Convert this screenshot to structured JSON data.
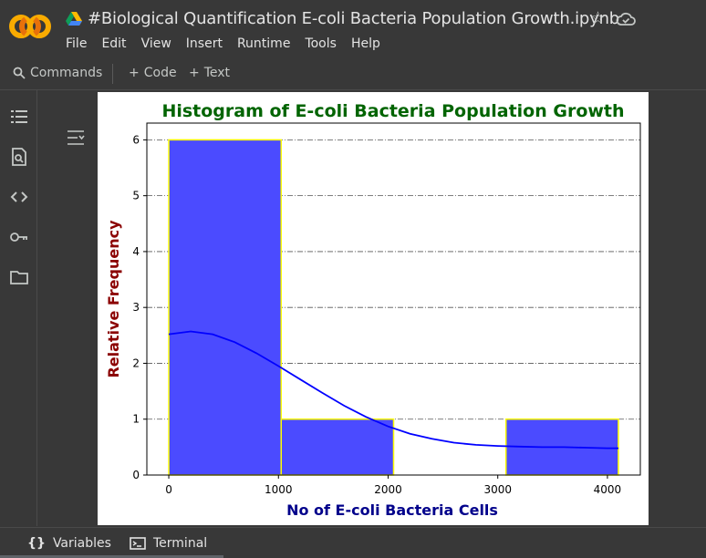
{
  "app": {
    "notebook_title": "#Biological Quantification E-coli Bacteria Population Growth.ipynb",
    "logo_text": "CO"
  },
  "menu": [
    "File",
    "Edit",
    "View",
    "Insert",
    "Runtime",
    "Tools",
    "Help"
  ],
  "toolbar": {
    "commands_label": "Commands",
    "add_code_label": "Code",
    "add_text_label": "Text"
  },
  "sidebar": {
    "icons": [
      "table-of-contents-icon",
      "find-replace-icon",
      "code-snippets-icon",
      "secrets-key-icon",
      "files-folder-icon"
    ]
  },
  "statusbar": {
    "variables_label": "Variables",
    "terminal_label": "Terminal"
  },
  "colors": {
    "title": "#006400",
    "axis_label_y": "#8b0000",
    "axis_label_x": "#00008b",
    "bar_fill": "#4b4bff",
    "bar_edge": "#ffff00",
    "kde_line": "#0000ff"
  },
  "chart_data": {
    "type": "bar",
    "title": "Histogram of E-coli Bacteria Population Growth",
    "xlabel": "No of E-coli Bacteria Cells",
    "ylabel": "Relative Frequency",
    "bins": [
      {
        "start": 0,
        "end": 1025,
        "count": 6
      },
      {
        "start": 1025,
        "end": 2050,
        "count": 1
      },
      {
        "start": 2050,
        "end": 3075,
        "count": 0
      },
      {
        "start": 3075,
        "end": 4100,
        "count": 1
      }
    ],
    "xlim": [
      -200,
      4300
    ],
    "ylim": [
      0,
      6.3
    ],
    "xticks": [
      0,
      1000,
      2000,
      3000,
      4000
    ],
    "yticks": [
      0,
      1,
      2,
      3,
      4,
      5,
      6
    ],
    "grid": "horizontal dash-dot",
    "kde": {
      "x": [
        0,
        200,
        400,
        600,
        800,
        1000,
        1200,
        1400,
        1600,
        1800,
        2000,
        2200,
        2400,
        2600,
        2800,
        3000,
        3200,
        3400,
        3600,
        3800,
        4000,
        4100
      ],
      "y": [
        2.52,
        2.57,
        2.52,
        2.38,
        2.18,
        1.95,
        1.71,
        1.47,
        1.24,
        1.04,
        0.87,
        0.74,
        0.65,
        0.58,
        0.54,
        0.52,
        0.51,
        0.5,
        0.5,
        0.49,
        0.48,
        0.48
      ]
    }
  }
}
